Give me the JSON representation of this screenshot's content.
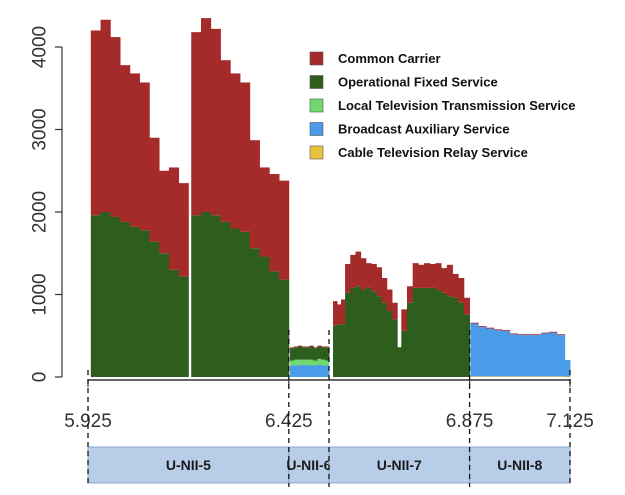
{
  "chart_data": {
    "type": "bar",
    "stacked": true,
    "title": "",
    "xlabel": "",
    "ylabel": "",
    "xlim": [
      5.925,
      7.125
    ],
    "ylim": [
      0,
      4400
    ],
    "y_ticks": [
      0,
      1000,
      2000,
      3000,
      4000
    ],
    "x_ticks": [
      "5.925",
      "6.425",
      "6.875",
      "7.125"
    ],
    "x_tick_values": [
      5.925,
      6.425,
      6.875,
      7.125
    ],
    "legend_position": "top-right",
    "series": [
      {
        "name": "Cable Television Relay Service",
        "color": "#e8c33a"
      },
      {
        "name": "Broadcast Auxiliary Service",
        "color": "#4a9be8"
      },
      {
        "name": "Local Television Transmission Service",
        "color": "#6fd96f"
      },
      {
        "name": "Operational Fixed Service",
        "color": "#2e5e1e"
      },
      {
        "name": "Common Carrier",
        "color": "#a52a2a"
      }
    ],
    "legend_order": [
      "Common Carrier",
      "Operational Fixed Service",
      "Local Television Transmission Service",
      "Broadcast Auxiliary Service",
      "Cable Television Relay Service"
    ],
    "segments": [
      {
        "x_start": 5.932,
        "x_end": 6.175,
        "ofs": [
          1960,
          2000,
          1940,
          1880,
          1820,
          1780,
          1640,
          1500,
          1300,
          1220
        ],
        "cc": [
          2240,
          2330,
          2180,
          1900,
          1860,
          1790,
          1260,
          1000,
          1240,
          1130
        ]
      },
      {
        "x_start": 6.182,
        "x_end": 6.425,
        "ofs": [
          1960,
          2000,
          1960,
          1880,
          1800,
          1760,
          1560,
          1460,
          1280,
          1180
        ],
        "cc": [
          2220,
          2350,
          2260,
          1960,
          1880,
          1810,
          1310,
          1080,
          1180,
          1200
        ]
      },
      {
        "x_start": 6.428,
        "x_end": 6.525,
        "bas": [
          140,
          140,
          140,
          150,
          140,
          140,
          140,
          150,
          140,
          140
        ],
        "ltts": [
          60,
          70,
          70,
          60,
          70,
          70,
          60,
          70,
          70,
          60
        ],
        "ofs": [
          150,
          150,
          160,
          150,
          150,
          160,
          150,
          150,
          150,
          160
        ],
        "cc": [
          10,
          10,
          10,
          10,
          10,
          10,
          10,
          10,
          10,
          10
        ]
      },
      {
        "x_start": 6.535,
        "x_end": 6.565,
        "ofs": [
          620,
          640,
          640
        ],
        "cc": [
          300,
          240,
          300
        ]
      },
      {
        "x_start": 6.565,
        "x_end": 6.695,
        "ofs": [
          1020,
          1080,
          1100,
          1060,
          1080,
          1040,
          980,
          900,
          800,
          700
        ],
        "cc": [
          350,
          400,
          420,
          380,
          300,
          330,
          350,
          300,
          260,
          200
        ]
      },
      {
        "x_start": 6.695,
        "x_end": 6.705,
        "ofs": [
          360
        ],
        "cc": [
          0
        ]
      },
      {
        "x_start": 6.705,
        "x_end": 6.875,
        "ofs": [
          560,
          900,
          1080,
          1080,
          1080,
          1080,
          1060,
          1020,
          980,
          960,
          900,
          760
        ],
        "cc": [
          260,
          200,
          300,
          280,
          300,
          290,
          320,
          300,
          380,
          290,
          300,
          200
        ]
      },
      {
        "x_start": 6.877,
        "x_end": 7.112,
        "ctrs": [
          8,
          8,
          8,
          8,
          8,
          8,
          8,
          8,
          8,
          8,
          8,
          8
        ],
        "bas": [
          640,
          600,
          580,
          560,
          550,
          510,
          500,
          500,
          500,
          520,
          530,
          500
        ],
        "cc": [
          10,
          10,
          10,
          10,
          10,
          10,
          10,
          10,
          10,
          10,
          10,
          10
        ]
      },
      {
        "x_start": 7.112,
        "x_end": 7.125,
        "ctrs": [
          6
        ],
        "bas": [
          200
        ],
        "cc": [
          0
        ]
      }
    ],
    "bands": [
      {
        "label": "U-NII-5",
        "start": 5.925,
        "end": 6.425
      },
      {
        "label": "U-NII-6",
        "start": 6.425,
        "end": 6.525
      },
      {
        "label": "U-NII-7",
        "start": 6.525,
        "end": 6.875
      },
      {
        "label": "U-NII-8",
        "start": 6.875,
        "end": 7.125
      }
    ],
    "boundaries": [
      5.925,
      6.425,
      6.525,
      6.875,
      7.125
    ]
  },
  "colors": {
    "axis": "#333333",
    "band_fill": "#b7cde8",
    "band_stroke": "#8aa9d0"
  }
}
